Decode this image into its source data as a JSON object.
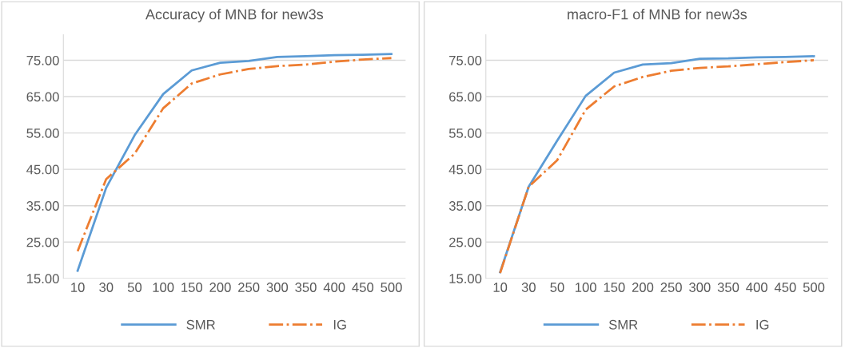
{
  "chart_data": [
    {
      "type": "line",
      "title": "Accuracy of MNB for new3s",
      "categories": [
        "10",
        "30",
        "50",
        "100",
        "150",
        "200",
        "250",
        "300",
        "350",
        "400",
        "450",
        "500"
      ],
      "series": [
        {
          "name": "SMR",
          "color": "#5b9bd5",
          "line_style": "solid",
          "values": [
            17.1,
            39.9,
            54.4,
            65.7,
            72.2,
            74.3,
            74.8,
            75.9,
            76.1,
            76.4,
            76.5,
            76.7
          ]
        },
        {
          "name": "IG",
          "color": "#ed7d31",
          "line_style": "dashdot",
          "values": [
            22.5,
            42.3,
            49.3,
            61.8,
            68.6,
            71.1,
            72.6,
            73.4,
            73.8,
            74.6,
            75.2,
            75.6
          ]
        }
      ],
      "ylim": [
        15,
        82
      ],
      "yticks": [
        {
          "value": 15,
          "label": "15.00"
        },
        {
          "value": 25,
          "label": "25.00"
        },
        {
          "value": 35,
          "label": "35.00"
        },
        {
          "value": 45,
          "label": "45.00"
        },
        {
          "value": 55,
          "label": "55.00"
        },
        {
          "value": 65,
          "label": "65.00"
        },
        {
          "value": 75,
          "label": "75.00"
        }
      ],
      "grid": "y",
      "legend": "bottom"
    },
    {
      "type": "line",
      "title": "macro-F1 of MNB for new3s",
      "categories": [
        "10",
        "30",
        "50",
        "100",
        "150",
        "200",
        "250",
        "300",
        "350",
        "400",
        "450",
        "500"
      ],
      "series": [
        {
          "name": "SMR",
          "color": "#5b9bd5",
          "line_style": "solid",
          "values": [
            16.7,
            40.2,
            52.9,
            65.2,
            71.6,
            73.8,
            74.2,
            75.4,
            75.5,
            75.8,
            75.9,
            76.1
          ]
        },
        {
          "name": "IG",
          "color": "#ed7d31",
          "line_style": "dashdot",
          "values": [
            16.5,
            40.2,
            47.5,
            61.4,
            67.8,
            70.4,
            72.1,
            72.9,
            73.3,
            73.9,
            74.5,
            75.0
          ]
        }
      ],
      "ylim": [
        15,
        82
      ],
      "yticks": [
        {
          "value": 15,
          "label": "15.00"
        },
        {
          "value": 25,
          "label": "25.00"
        },
        {
          "value": 35,
          "label": "35.00"
        },
        {
          "value": 45,
          "label": "45.00"
        },
        {
          "value": 55,
          "label": "55.00"
        },
        {
          "value": 65,
          "label": "65.00"
        },
        {
          "value": 75,
          "label": "75.00"
        }
      ],
      "grid": "y",
      "legend": "bottom"
    }
  ]
}
